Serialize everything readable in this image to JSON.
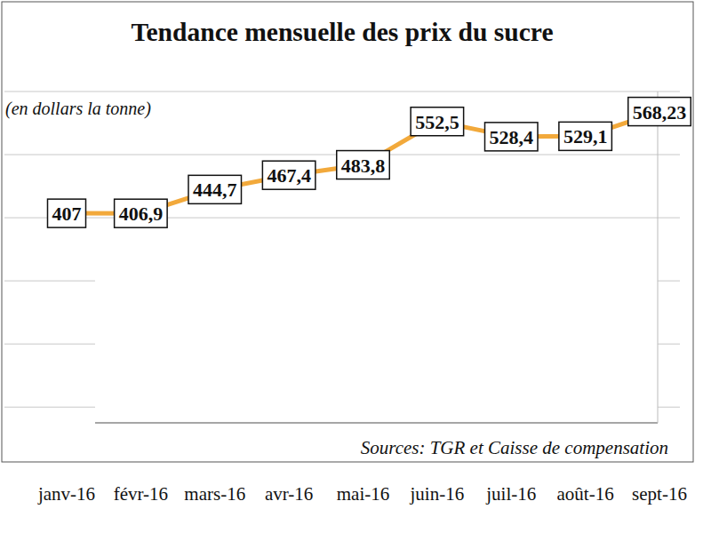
{
  "chart_data": {
    "type": "line",
    "title": "Tendance mensuelle des prix du sucre",
    "subtitle": "(en dollars la tonne)",
    "source": "Sources: TGR et Caisse de compensation",
    "categories": [
      "janv-16",
      "févr-16",
      "mars-16",
      "avr-16",
      "mai-16",
      "juin-16",
      "juil-16",
      "août-16",
      "sept-16"
    ],
    "values": [
      407,
      406.9,
      444.7,
      467.4,
      483.8,
      552.5,
      528.4,
      529.1,
      568.23
    ],
    "value_labels": [
      "407",
      "406,9",
      "444,7",
      "467,4",
      "483,8",
      "552,5",
      "528,4",
      "529,1",
      "568,23"
    ],
    "color": "#f2a93b",
    "ylim": [
      75,
      600
    ],
    "yticks": [
      100,
      200,
      300,
      400,
      500,
      600
    ],
    "grid": true,
    "data_labels": true,
    "tick_labels": "x"
  }
}
